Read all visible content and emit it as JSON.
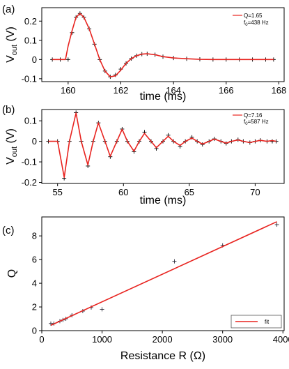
{
  "panels": [
    {
      "label": "(a)",
      "chart_data": {
        "type": "line",
        "xlabel": "time (ms)",
        "ylabel_main": "V",
        "ylabel_sub": "out",
        "ylabel_unit": " (V)",
        "xlim": [
          159,
          168.2
        ],
        "ylim": [
          -0.115,
          0.27
        ],
        "xticks": [
          160,
          162,
          164,
          166,
          168
        ],
        "yticks": [
          -0.1,
          0,
          0.1,
          0.2
        ],
        "ytick_labels": [
          "-0.1",
          "0",
          "0.1",
          "0.2"
        ],
        "legend": {
          "line1": "Q=1.65",
          "line2_main": "f",
          "line2_sub": "0",
          "line2_rest": "=438 Hz",
          "placement": "top-right"
        },
        "grid": false,
        "series": [
          {
            "role": "data",
            "marker": "+",
            "color": "#000000",
            "x": [
              159.4,
              159.7,
              160.0,
              160.15,
              160.3,
              160.45,
              160.6,
              160.8,
              161.0,
              161.2,
              161.4,
              161.6,
              161.8,
              162.0,
              162.2,
              162.4,
              162.6,
              162.8,
              163.0,
              163.3,
              163.6,
              164.0,
              164.5,
              165.0,
              165.5,
              166.0,
              166.5,
              167.0,
              167.5,
              167.8
            ],
            "y": [
              0.0,
              0.0,
              0.0,
              0.14,
              0.22,
              0.24,
              0.22,
              0.16,
              0.08,
              0.0,
              -0.06,
              -0.09,
              -0.08,
              -0.05,
              -0.02,
              0.005,
              0.02,
              0.028,
              0.03,
              0.025,
              0.015,
              0.008,
              0.004,
              0.001,
              0.0,
              0.0,
              0.0,
              0.0,
              0.0,
              0.0
            ]
          },
          {
            "role": "fit",
            "color": "#e8231f",
            "x": [
              159.4,
              159.9,
              160.0,
              160.15,
              160.3,
              160.45,
              160.6,
              160.8,
              161.0,
              161.2,
              161.4,
              161.6,
              161.8,
              162.0,
              162.2,
              162.4,
              162.6,
              162.8,
              163.0,
              163.3,
              163.6,
              164.0,
              164.5,
              165.0,
              165.5,
              166.0,
              166.5,
              167.0,
              167.5,
              167.8
            ],
            "y": [
              0.0,
              0.0,
              0.07,
              0.15,
              0.22,
              0.24,
              0.22,
              0.16,
              0.08,
              0.0,
              -0.06,
              -0.09,
              -0.085,
              -0.055,
              -0.02,
              0.005,
              0.02,
              0.028,
              0.03,
              0.025,
              0.015,
              0.008,
              0.004,
              0.001,
              0.0,
              0.0,
              0.0,
              0.0,
              0.0,
              0.0
            ]
          }
        ]
      }
    },
    {
      "label": "(b)",
      "chart_data": {
        "type": "line",
        "xlabel": "time (ms)",
        "ylabel_main": "V",
        "ylabel_sub": "out",
        "ylabel_unit": " (V)",
        "xlim": [
          53.8,
          72.2
        ],
        "ylim": [
          -0.205,
          0.155
        ],
        "xticks": [
          55,
          60,
          65,
          70
        ],
        "yticks": [
          -0.2,
          -0.1,
          0,
          0.1
        ],
        "ytick_labels": [
          "-0.2",
          "-0.1",
          "0",
          "0.1"
        ],
        "legend": {
          "line1": "Q=7.16",
          "line2_main": "f",
          "line2_sub": "0",
          "line2_rest": "=587 Hz",
          "placement": "top-right"
        },
        "grid": false,
        "series": [
          {
            "role": "data",
            "marker": "+",
            "color": "#000000",
            "x": [
              54.3,
              55.0,
              55.5,
              55.9,
              56.4,
              56.8,
              57.3,
              57.7,
              58.1,
              58.6,
              59.0,
              59.5,
              59.9,
              60.3,
              60.8,
              61.2,
              61.6,
              62.1,
              62.5,
              63.0,
              63.4,
              63.8,
              64.3,
              64.7,
              65.2,
              65.6,
              66.0,
              66.5,
              66.9,
              67.4,
              67.8,
              68.2,
              68.7,
              69.1,
              69.6,
              70.0,
              70.4,
              70.9,
              71.3,
              71.6
            ],
            "y": [
              0.0,
              0.0,
              -0.18,
              0.0,
              0.14,
              0.0,
              -0.12,
              0.0,
              0.09,
              0.0,
              -0.075,
              0.0,
              0.06,
              0.0,
              -0.05,
              0.0,
              0.045,
              0.0,
              -0.035,
              0.0,
              0.03,
              0.0,
              -0.025,
              0.0,
              0.02,
              0.0,
              -0.015,
              0.0,
              0.012,
              0.0,
              -0.01,
              0.0,
              0.008,
              0.0,
              -0.006,
              0.0,
              0.005,
              0.0,
              0.0,
              0.0
            ]
          },
          {
            "role": "fit",
            "color": "#e8231f",
            "x": [
              54.3,
              55.0,
              55.5,
              55.9,
              56.4,
              56.8,
              57.3,
              57.7,
              58.1,
              58.6,
              59.0,
              59.5,
              59.9,
              60.3,
              60.8,
              61.2,
              61.6,
              62.1,
              62.5,
              63.0,
              63.4,
              63.8,
              64.3,
              64.7,
              65.2,
              65.6,
              66.0,
              66.5,
              66.9,
              67.4,
              67.8,
              68.2,
              68.7,
              69.1,
              69.6,
              70.0,
              70.4,
              70.9,
              71.3,
              71.6
            ],
            "y": [
              0.0,
              0.0,
              -0.175,
              0.0,
              0.138,
              0.0,
              -0.115,
              0.0,
              0.09,
              0.0,
              -0.073,
              0.0,
              0.059,
              0.0,
              -0.048,
              0.0,
              0.039,
              0.0,
              -0.031,
              0.0,
              0.025,
              0.0,
              -0.02,
              0.0,
              0.016,
              0.0,
              -0.013,
              0.0,
              0.011,
              0.0,
              -0.009,
              0.0,
              0.007,
              0.0,
              -0.006,
              0.0,
              0.005,
              0.0,
              0.004,
              0.0
            ]
          }
        ]
      }
    },
    {
      "label": "(c)",
      "chart_data": {
        "type": "scatter",
        "xlabel": "Resistance R (Ω)",
        "ylabel": "Q",
        "xlim": [
          0,
          4020
        ],
        "ylim": [
          0,
          9.6
        ],
        "xticks": [
          0,
          1000,
          2000,
          3000,
          4000
        ],
        "yticks": [
          0,
          2,
          4,
          6,
          8
        ],
        "legend": {
          "label": "fit",
          "placement": "bottom-right"
        },
        "grid": false,
        "series": [
          {
            "role": "data",
            "marker": "+",
            "color": "#2b2b3a",
            "x": [
              150,
              200,
              300,
              350,
              400,
              500,
              680,
              820,
              1000,
              2200,
              3000,
              3900
            ],
            "y": [
              0.6,
              0.6,
              0.8,
              0.9,
              1.0,
              1.3,
              1.65,
              1.95,
              1.8,
              5.85,
              7.2,
              8.95
            ]
          },
          {
            "role": "fit",
            "name": "fit",
            "color": "#e8231f",
            "x": [
              150,
              3900
            ],
            "y": [
              0.45,
              9.2
            ]
          }
        ]
      }
    }
  ]
}
